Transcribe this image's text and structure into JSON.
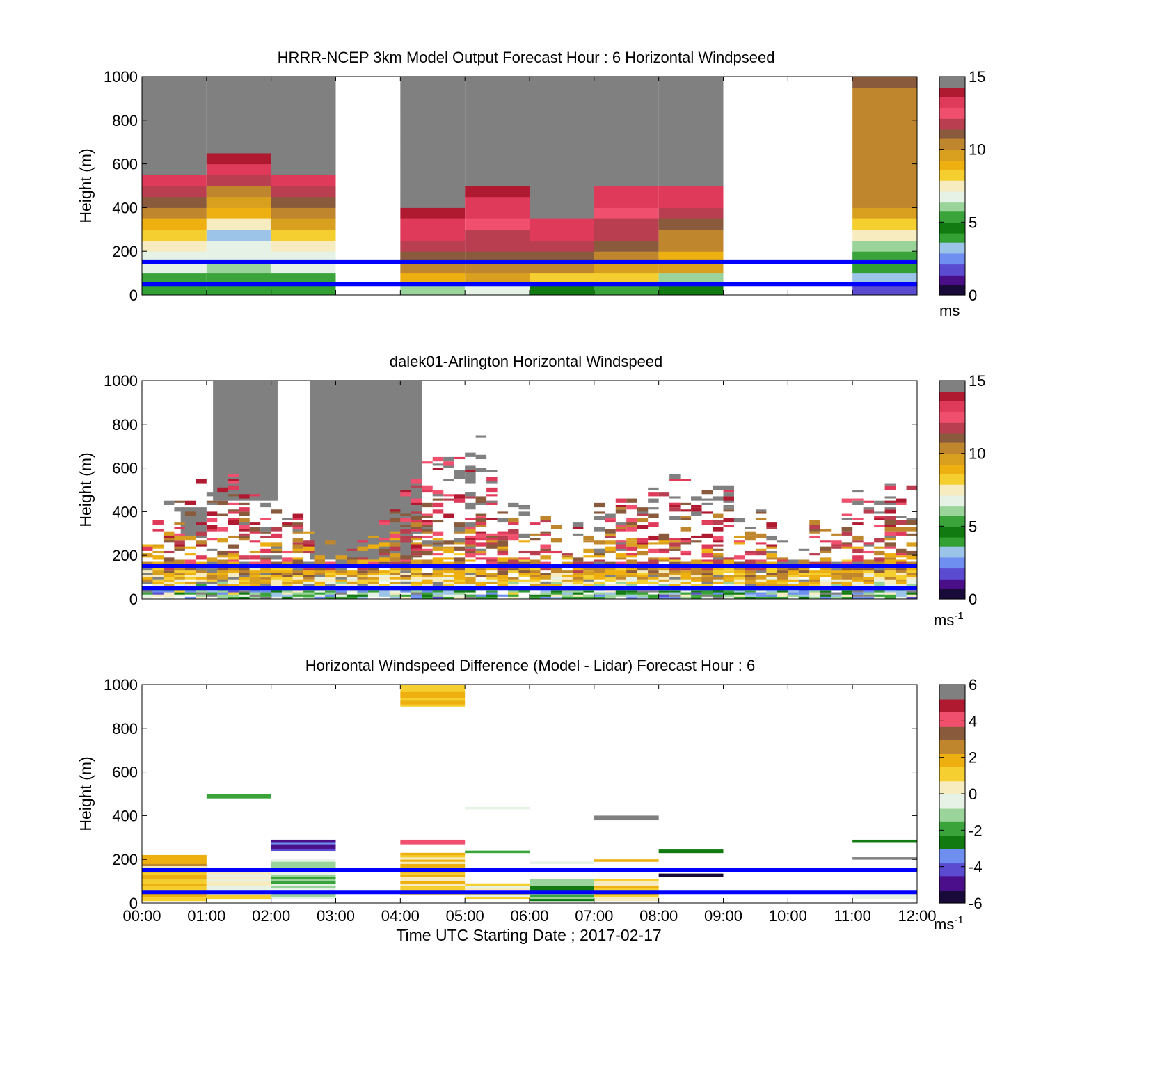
{
  "figure": {
    "xlabel": "Time UTC  Starting Date ; 2017-02-17",
    "x_ticks": [
      "00:00",
      "01:00",
      "02:00",
      "03:00",
      "04:00",
      "05:00",
      "06:00",
      "07:00",
      "08:00",
      "09:00",
      "10:00",
      "11:00",
      "12:00"
    ],
    "reference_lines": {
      "color": "#0000ff",
      "heights_m": [
        150,
        50
      ]
    }
  },
  "colormaps": {
    "windspeed": [
      "#1a0a3a",
      "#4b0f8a",
      "#5a4bd0",
      "#6f8ff0",
      "#9cc4e8",
      "#33a033",
      "#117a11",
      "#3aa43a",
      "#9bd49b",
      "#e6f2e6",
      "#f6ecc0",
      "#f5cf30",
      "#eeb010",
      "#d9a020",
      "#c0862e",
      "#8a5a3c",
      "#b83e50",
      "#f0506e",
      "#e03a5a",
      "#b01a30",
      "#808080"
    ],
    "difference": [
      "#1a0a3a",
      "#4b0f8a",
      "#5a4bd0",
      "#6f8ff0",
      "#117a11",
      "#3aa43a",
      "#9bd49b",
      "#e6f2e6",
      "#f6ecc0",
      "#f5cf30",
      "#eeb010",
      "#c0862e",
      "#8a5a3c",
      "#f0506e",
      "#b01a30",
      "#808080"
    ]
  },
  "chart_data": [
    {
      "type": "heatmap",
      "title": "HRRR-NCEP 3km Model Output   Forecast Hour : 6 Horizontal Windpseed",
      "xlabel": "",
      "ylabel": "Height (m)",
      "x_range": [
        "00:00",
        "12:00"
      ],
      "ylim": [
        0,
        1000
      ],
      "y_ticks": [
        0,
        200,
        400,
        600,
        800,
        1000
      ],
      "colorbar": {
        "range": [
          0,
          15
        ],
        "ticks": [
          0,
          5,
          10,
          15
        ],
        "unit": "ms",
        "unit_superscript": ""
      },
      "cell_height_m": 50,
      "columns": [
        {
          "start": "00:00",
          "end": "01:00",
          "values": [
            4,
            5.5,
            6.5,
            7,
            7.5,
            8.3,
            9.2,
            10,
            11,
            12,
            13.5,
            14.5,
            15,
            15,
            15,
            15,
            15,
            15,
            15,
            15
          ]
        },
        {
          "start": "01:00",
          "end": "02:00",
          "values": [
            4,
            5,
            6,
            6.5,
            7,
            3.5,
            7.5,
            8.7,
            9.5,
            10.5,
            11.5,
            13,
            14,
            15,
            15,
            15,
            15,
            15,
            15,
            15
          ]
        },
        {
          "start": "02:00",
          "end": "03:00",
          "values": [
            4,
            5.5,
            6.5,
            7,
            7.5,
            8.5,
            9.3,
            10,
            11,
            12,
            13,
            14.5,
            15,
            15,
            15,
            15,
            15,
            15,
            15,
            15
          ]
        },
        {
          "start": "04:00",
          "end": "05:00",
          "values": [
            6,
            9,
            10,
            11,
            12,
            13,
            13.5,
            14,
            14.5,
            15,
            15,
            15,
            15,
            15,
            15,
            15,
            15,
            15,
            15,
            15
          ]
        },
        {
          "start": "05:00",
          "end": "06:00",
          "values": [
            7,
            9.5,
            10.5,
            11,
            11.5,
            12,
            12.5,
            13,
            13.5,
            14,
            14.5,
            15,
            15,
            15,
            15,
            15,
            15,
            15,
            15,
            15
          ]
        },
        {
          "start": "06:00",
          "end": "07:00",
          "values": [
            4.5,
            8.5,
            10,
            11,
            12,
            13,
            13.5,
            14.5,
            15,
            15,
            15,
            15,
            15,
            15,
            15,
            15,
            15,
            15,
            15,
            15
          ]
        },
        {
          "start": "07:00",
          "end": "08:00",
          "values": [
            5,
            8.5,
            9.5,
            10.3,
            11,
            11.5,
            12,
            12.5,
            13,
            13.5,
            14.5,
            15,
            15,
            15,
            15,
            15,
            15,
            15,
            15,
            15
          ]
        },
        {
          "start": "08:00",
          "end": "09:00",
          "values": [
            4.5,
            6,
            9.5,
            9,
            10,
            10.5,
            11,
            12,
            13,
            13.5,
            14.5,
            15,
            15,
            15,
            15,
            15,
            15,
            15,
            15,
            15
          ]
        },
        {
          "start": "11:00",
          "end": "12:00",
          "values": [
            2,
            3,
            4,
            5,
            6,
            7.5,
            8.5,
            9.5,
            10,
            10,
            10,
            10,
            10,
            10,
            10,
            10,
            10,
            10,
            10,
            11
          ]
        }
      ]
    },
    {
      "type": "heatmap",
      "title": "dalek01-Arlington  Horizontal Windspeed",
      "xlabel": "",
      "ylabel": "Height (m)",
      "x_range": [
        "00:00",
        "12:00"
      ],
      "ylim": [
        0,
        1000
      ],
      "y_ticks": [
        0,
        200,
        400,
        600,
        800,
        1000
      ],
      "colorbar": {
        "range": [
          0,
          15
        ],
        "ticks": [
          0,
          5,
          10,
          15
        ],
        "unit": "ms",
        "unit_superscript": "-1"
      },
      "cell_height_m": 10,
      "columns_per_hour": 6,
      "gray_regions": [
        {
          "start": "01:06",
          "end": "02:06",
          "bottom_m": 450,
          "top_m": 1000
        },
        {
          "start": "02:36",
          "end": "04:12",
          "bottom_m": 180,
          "top_m": 1000
        },
        {
          "start": "03:50",
          "end": "04:20",
          "bottom_m": 300,
          "top_m": 1000
        },
        {
          "start": "00:36",
          "end": "01:00",
          "bottom_m": 280,
          "top_m": 420
        }
      ]
    },
    {
      "type": "heatmap",
      "title": "Horizontal Windspeed Difference (Model - Lidar) Forecast Hour : 6",
      "xlabel": "Time UTC  Starting Date ; 2017-02-17",
      "ylabel": "Height (m)",
      "x_range": [
        "00:00",
        "12:00"
      ],
      "ylim": [
        0,
        1000
      ],
      "y_ticks": [
        0,
        200,
        400,
        600,
        800,
        1000
      ],
      "colorbar": {
        "range": [
          -6,
          6
        ],
        "ticks": [
          -6,
          -4,
          -2,
          0,
          2,
          4,
          6
        ],
        "unit": "ms",
        "unit_superscript": "-1"
      },
      "cells": [
        {
          "start": "00:00",
          "end": "01:00",
          "bottom_m": 10,
          "top_m": 220,
          "value": 1.5
        },
        {
          "start": "01:00",
          "end": "02:00",
          "bottom_m": 20,
          "top_m": 150,
          "value": 0.2
        },
        {
          "start": "01:00",
          "end": "02:00",
          "bottom_m": 480,
          "top_m": 500,
          "value": -2.2
        },
        {
          "start": "02:00",
          "end": "03:00",
          "bottom_m": 20,
          "top_m": 200,
          "value": -1
        },
        {
          "start": "02:00",
          "end": "03:00",
          "bottom_m": 240,
          "top_m": 290,
          "value": -4.5
        },
        {
          "start": "04:00",
          "end": "05:00",
          "bottom_m": 40,
          "top_m": 230,
          "value": 1.3
        },
        {
          "start": "04:00",
          "end": "05:00",
          "bottom_m": 270,
          "top_m": 290,
          "value": 4.2
        },
        {
          "start": "04:00",
          "end": "05:00",
          "bottom_m": 900,
          "top_m": 1000,
          "value": 1.5
        },
        {
          "start": "05:00",
          "end": "06:00",
          "bottom_m": 20,
          "top_m": 90,
          "value": 0.5
        },
        {
          "start": "05:00",
          "end": "06:00",
          "bottom_m": 230,
          "top_m": 240,
          "value": -2
        },
        {
          "start": "05:00",
          "end": "06:00",
          "bottom_m": 430,
          "top_m": 440,
          "value": -0.7
        },
        {
          "start": "06:00",
          "end": "07:00",
          "bottom_m": 10,
          "top_m": 110,
          "value": -1.8
        },
        {
          "start": "06:00",
          "end": "07:00",
          "bottom_m": 180,
          "top_m": 190,
          "value": -0.5
        },
        {
          "start": "07:00",
          "end": "08:00",
          "bottom_m": 10,
          "top_m": 110,
          "value": 1
        },
        {
          "start": "07:00",
          "end": "08:00",
          "bottom_m": 190,
          "top_m": 200,
          "value": 1.8
        },
        {
          "start": "07:00",
          "end": "08:00",
          "bottom_m": 380,
          "top_m": 400,
          "value": 6
        },
        {
          "start": "08:00",
          "end": "09:00",
          "bottom_m": 120,
          "top_m": 135,
          "value": -5.5
        },
        {
          "start": "08:00",
          "end": "09:00",
          "bottom_m": 230,
          "top_m": 245,
          "value": -2.8
        },
        {
          "start": "11:00",
          "end": "12:00",
          "bottom_m": 20,
          "top_m": 40,
          "value": -0.5
        },
        {
          "start": "11:00",
          "end": "12:00",
          "bottom_m": 200,
          "top_m": 210,
          "value": 6
        },
        {
          "start": "11:00",
          "end": "12:00",
          "bottom_m": 280,
          "top_m": 290,
          "value": -2.5
        }
      ]
    }
  ]
}
